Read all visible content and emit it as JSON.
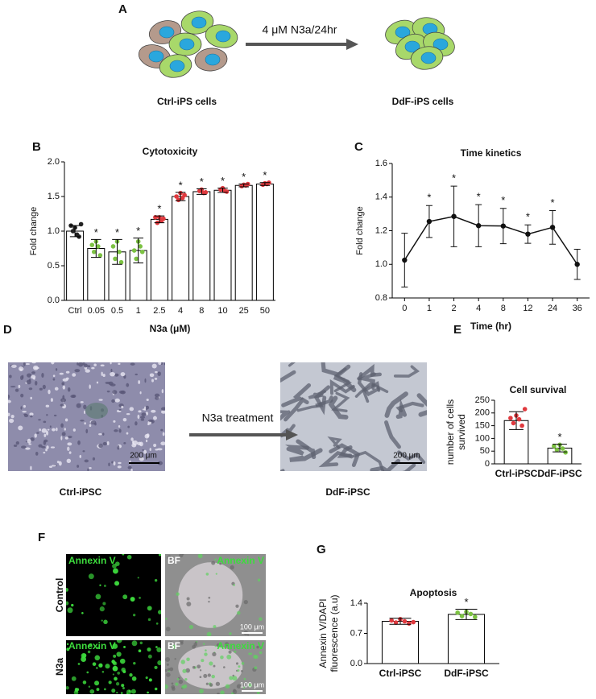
{
  "panels": {
    "a": {
      "label": "A",
      "treatment": "4 μM N3a/24hr",
      "left": "Ctrl-iPS cells",
      "right": "DdF-iPS cells"
    },
    "d": {
      "label": "D",
      "treatment": "N3a treatment",
      "left": "Ctrl-iPSC",
      "right": "DdF-iPSC",
      "scale": "200 μm"
    },
    "f": {
      "label": "F",
      "rows": [
        "Control",
        "N3a"
      ],
      "stain": "Annexin V",
      "bf": "BF",
      "scale": "100 μm"
    }
  },
  "chart_data": [
    {
      "type": "bar",
      "panel_label": "B",
      "title": "Cytotoxicity",
      "xlabel": "N3a (μM)",
      "ylabel": [
        "Fold change"
      ],
      "categories": [
        "Ctrl",
        "0.05",
        "0.5",
        "1",
        "2.5",
        "4",
        "8",
        "10",
        "25",
        "50"
      ],
      "values": [
        1.0,
        0.75,
        0.7,
        0.72,
        1.17,
        1.5,
        1.57,
        1.59,
        1.66,
        1.68
      ],
      "errors": [
        0.08,
        0.13,
        0.18,
        0.18,
        0.05,
        0.06,
        0.04,
        0.03,
        0.02,
        0.02
      ],
      "points": [
        [
          1.05,
          0.95,
          1.0,
          0.92,
          1.08,
          1.1
        ],
        [
          0.85,
          0.78,
          0.7,
          0.65,
          0.8
        ],
        [
          0.85,
          0.7,
          0.6,
          0.55,
          0.78
        ],
        [
          0.85,
          0.78,
          0.6,
          0.7,
          0.72
        ],
        [
          1.2,
          1.15,
          1.12,
          1.18,
          1.2
        ],
        [
          1.55,
          1.48,
          1.45,
          1.52,
          1.5
        ],
        [
          1.6,
          1.55,
          1.58,
          1.56
        ],
        [
          1.62,
          1.58,
          1.6,
          1.57
        ],
        [
          1.67,
          1.66,
          1.65,
          1.68
        ],
        [
          1.69,
          1.68,
          1.67,
          1.7
        ]
      ],
      "point_colors": [
        "#222222",
        "#7cc242",
        "#7cc242",
        "#7cc242",
        "#e0393e",
        "#e0393e",
        "#e0393e",
        "#e0393e",
        "#e0393e",
        "#e0393e"
      ],
      "annotations": [
        null,
        "*",
        "*",
        "*",
        "*",
        "*",
        "*",
        "*",
        "*",
        "*"
      ],
      "ylim": [
        0,
        2
      ],
      "yticks": [
        {
          "value": 0,
          "label": "0.0"
        },
        {
          "value": 0.5,
          "label": "0.5"
        },
        {
          "value": 1,
          "label": "1.0"
        },
        {
          "value": 1.5,
          "label": "1.5"
        },
        {
          "value": 2,
          "label": "2.0"
        }
      ]
    },
    {
      "type": "line",
      "panel_label": "C",
      "title": "Time kinetics",
      "xlabel": "Time (hr)",
      "ylabel": [
        "Fold change"
      ],
      "categories": [
        "0",
        "1",
        "2",
        "4",
        "8",
        "12",
        "24",
        "36"
      ],
      "values": [
        1.025,
        1.255,
        1.285,
        1.23,
        1.228,
        1.18,
        1.22,
        1.0
      ],
      "errors": [
        0.16,
        0.095,
        0.18,
        0.125,
        0.105,
        0.055,
        0.1,
        0.09
      ],
      "annotations": [
        null,
        "*",
        "*",
        "*",
        "*",
        "*",
        "*",
        null
      ],
      "color": "#111111",
      "ylim": [
        0.8,
        1.6
      ],
      "yticks": [
        {
          "value": 0.8,
          "label": "0.8"
        },
        {
          "value": 1,
          "label": "1.0"
        },
        {
          "value": 1.2,
          "label": "1.2"
        },
        {
          "value": 1.4,
          "label": "1.4"
        },
        {
          "value": 1.6,
          "label": "1.6"
        }
      ]
    },
    {
      "type": "bar",
      "panel_label": "E",
      "title": "Cell survival",
      "ylabel": [
        "number of cells",
        "survived"
      ],
      "categories": [
        "Ctrl-iPSC",
        "DdF-iPSC"
      ],
      "values": [
        170,
        62
      ],
      "errors": [
        35,
        15
      ],
      "points": [
        [
          190,
          175,
          160,
          150,
          180,
          215
        ],
        [
          75,
          60,
          55,
          45,
          70
        ]
      ],
      "point_colors": [
        "#e0393e",
        "#7cc242"
      ],
      "annotations": [
        null,
        "*"
      ],
      "ylim": [
        0,
        250
      ],
      "yticks": [
        0,
        50,
        100,
        150,
        200,
        250
      ]
    },
    {
      "type": "bar",
      "panel_label": "G",
      "title": "Apoptosis",
      "ylabel": [
        "Annexin V/DAPI",
        "fluorescence (a.u)"
      ],
      "categories": [
        "Ctrl-iPSC",
        "DdF-iPSC"
      ],
      "values": [
        0.98,
        1.14
      ],
      "errors": [
        0.07,
        0.12
      ],
      "points": [
        [
          1.03,
          0.98,
          0.95,
          0.93,
          1.0,
          0.96
        ],
        [
          1.2,
          1.15,
          1.1,
          1.08,
          1.18
        ]
      ],
      "point_colors": [
        "#e0393e",
        "#7cc242"
      ],
      "annotations": [
        null,
        "*"
      ],
      "ylim": [
        0,
        1.4
      ],
      "yticks": [
        {
          "value": 0,
          "label": "0.0"
        },
        {
          "value": 0.7,
          "label": "0.7"
        },
        {
          "value": 1.4,
          "label": "1.4"
        }
      ]
    }
  ]
}
